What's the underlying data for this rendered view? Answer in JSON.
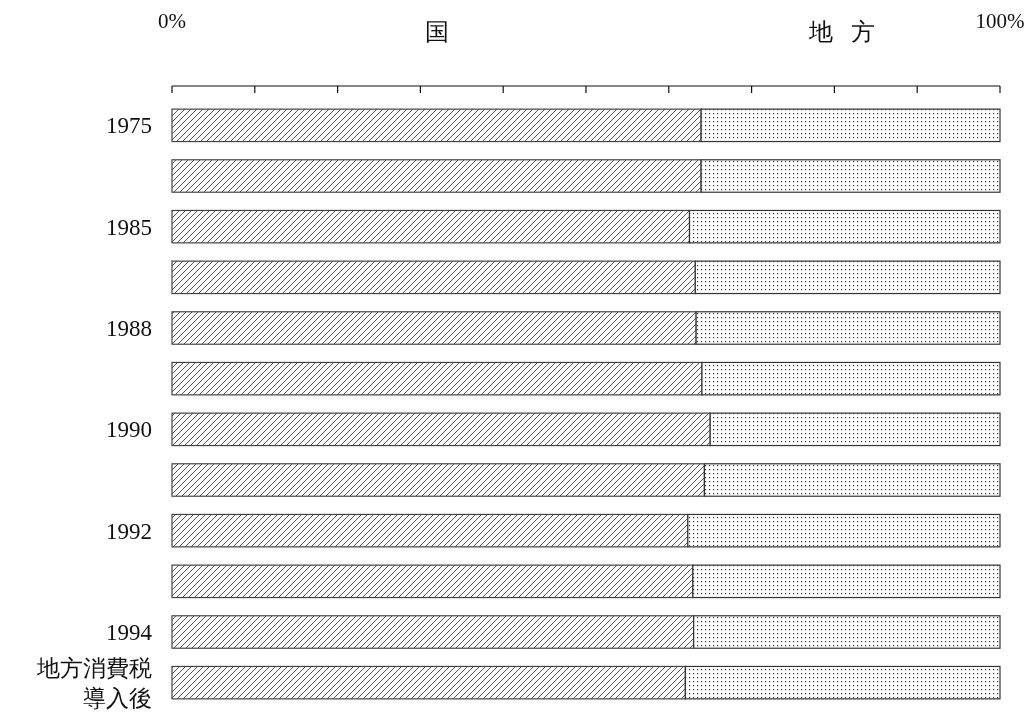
{
  "chart_data": {
    "type": "bar",
    "orientation": "horizontal",
    "stacked": true,
    "categories": [
      "1975",
      null,
      "1985",
      null,
      "1988",
      null,
      "1990",
      null,
      "1992",
      null,
      "1994",
      "地方消費税導入後"
    ],
    "series": [
      {
        "name": "国",
        "color": "#444444",
        "values": [
          63.9,
          63.9,
          62.5,
          63.2,
          63.3,
          64.0,
          65.0,
          64.3,
          62.3,
          62.9,
          63.0,
          62.0
        ]
      },
      {
        "name": "地方",
        "color": "#333333",
        "values": [
          36.1,
          36.1,
          37.5,
          36.8,
          36.7,
          36.0,
          35.0,
          35.7,
          37.7,
          37.1,
          37.0,
          38.0
        ]
      }
    ],
    "xlim": [
      0,
      100
    ],
    "xticks": [
      {
        "value": 0,
        "label": "0%"
      },
      {
        "value": 10,
        "label": null
      },
      {
        "value": 20,
        "label": null
      },
      {
        "value": 30,
        "label": null
      },
      {
        "value": 40,
        "label": null
      },
      {
        "value": 50,
        "label": null
      },
      {
        "value": 60,
        "label": null
      },
      {
        "value": 70,
        "label": null
      },
      {
        "value": 80,
        "label": null
      },
      {
        "value": 90,
        "label": null
      },
      {
        "value": 100,
        "label": "100%"
      }
    ],
    "grid": false
  }
}
